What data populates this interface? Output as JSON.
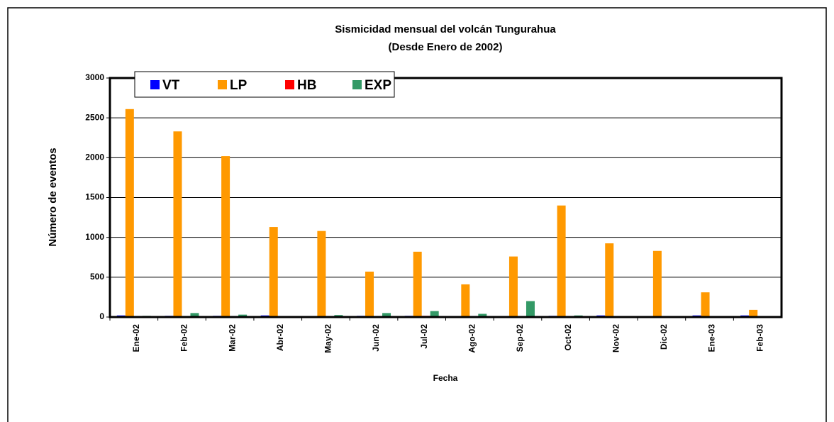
{
  "chart_data": {
    "type": "bar",
    "title": "Sismicidad mensual del volcán Tungurahua",
    "subtitle": "(Desde Enero de 2002)",
    "x_label": "Fecha",
    "y_label": "Número de eventos",
    "categories": [
      "Ene-02",
      "Feb-02",
      "Mar-02",
      "Abr-02",
      "May-02",
      "Jun-02",
      "Jul-02",
      "Ago-02",
      "Sep-02",
      "Oct-02",
      "Nov-02",
      "Dic-02",
      "Ene-03",
      "Feb-03"
    ],
    "series": [
      {
        "name": "VT",
        "color": "#0000ff",
        "values": [
          20,
          15,
          15,
          20,
          10,
          15,
          15,
          5,
          10,
          15,
          20,
          5,
          20,
          20
        ]
      },
      {
        "name": "LP",
        "color": "#ff9900",
        "values": [
          2610,
          2330,
          2020,
          1130,
          1080,
          570,
          820,
          410,
          760,
          1400,
          925,
          830,
          310,
          90
        ]
      },
      {
        "name": "HB",
        "color": "#ff0000",
        "values": [
          0,
          0,
          0,
          0,
          0,
          0,
          15,
          0,
          0,
          0,
          0,
          0,
          0,
          0
        ]
      },
      {
        "name": "EXP",
        "color": "#339966",
        "values": [
          15,
          50,
          30,
          5,
          25,
          50,
          75,
          40,
          200,
          20,
          10,
          5,
          5,
          5
        ]
      }
    ],
    "ylim": [
      0,
      3000
    ],
    "yticks": [
      0,
      500,
      1000,
      1500,
      2000,
      2500,
      3000
    ],
    "grid": true,
    "legend": "top-left"
  }
}
